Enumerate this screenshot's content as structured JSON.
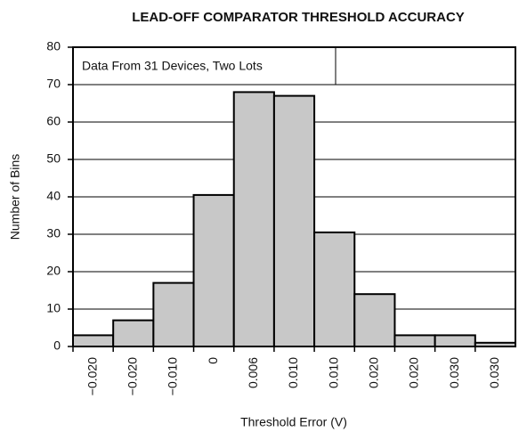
{
  "chart_data": {
    "type": "bar",
    "title": "LEAD-OFF COMPARATOR THRESHOLD ACCURACY",
    "annotation": "Data From 31 Devices, Two Lots",
    "x_label": "Threshold Error (V)",
    "y_label": "Number of Bins",
    "categories": [
      "−0.020",
      "−0.020",
      "−0.010",
      "0",
      "0.006",
      "0.010",
      "0.010",
      "0.020",
      "0.020",
      "0.030",
      "0.030"
    ],
    "values": [
      3,
      7,
      17,
      40.5,
      68,
      67,
      30.5,
      14,
      3,
      3,
      1
    ],
    "color": "#c8c8c8",
    "ylim": [
      0,
      80
    ],
    "yticks": [
      0,
      10,
      20,
      30,
      40,
      50,
      60,
      70,
      80
    ],
    "grid": true
  }
}
